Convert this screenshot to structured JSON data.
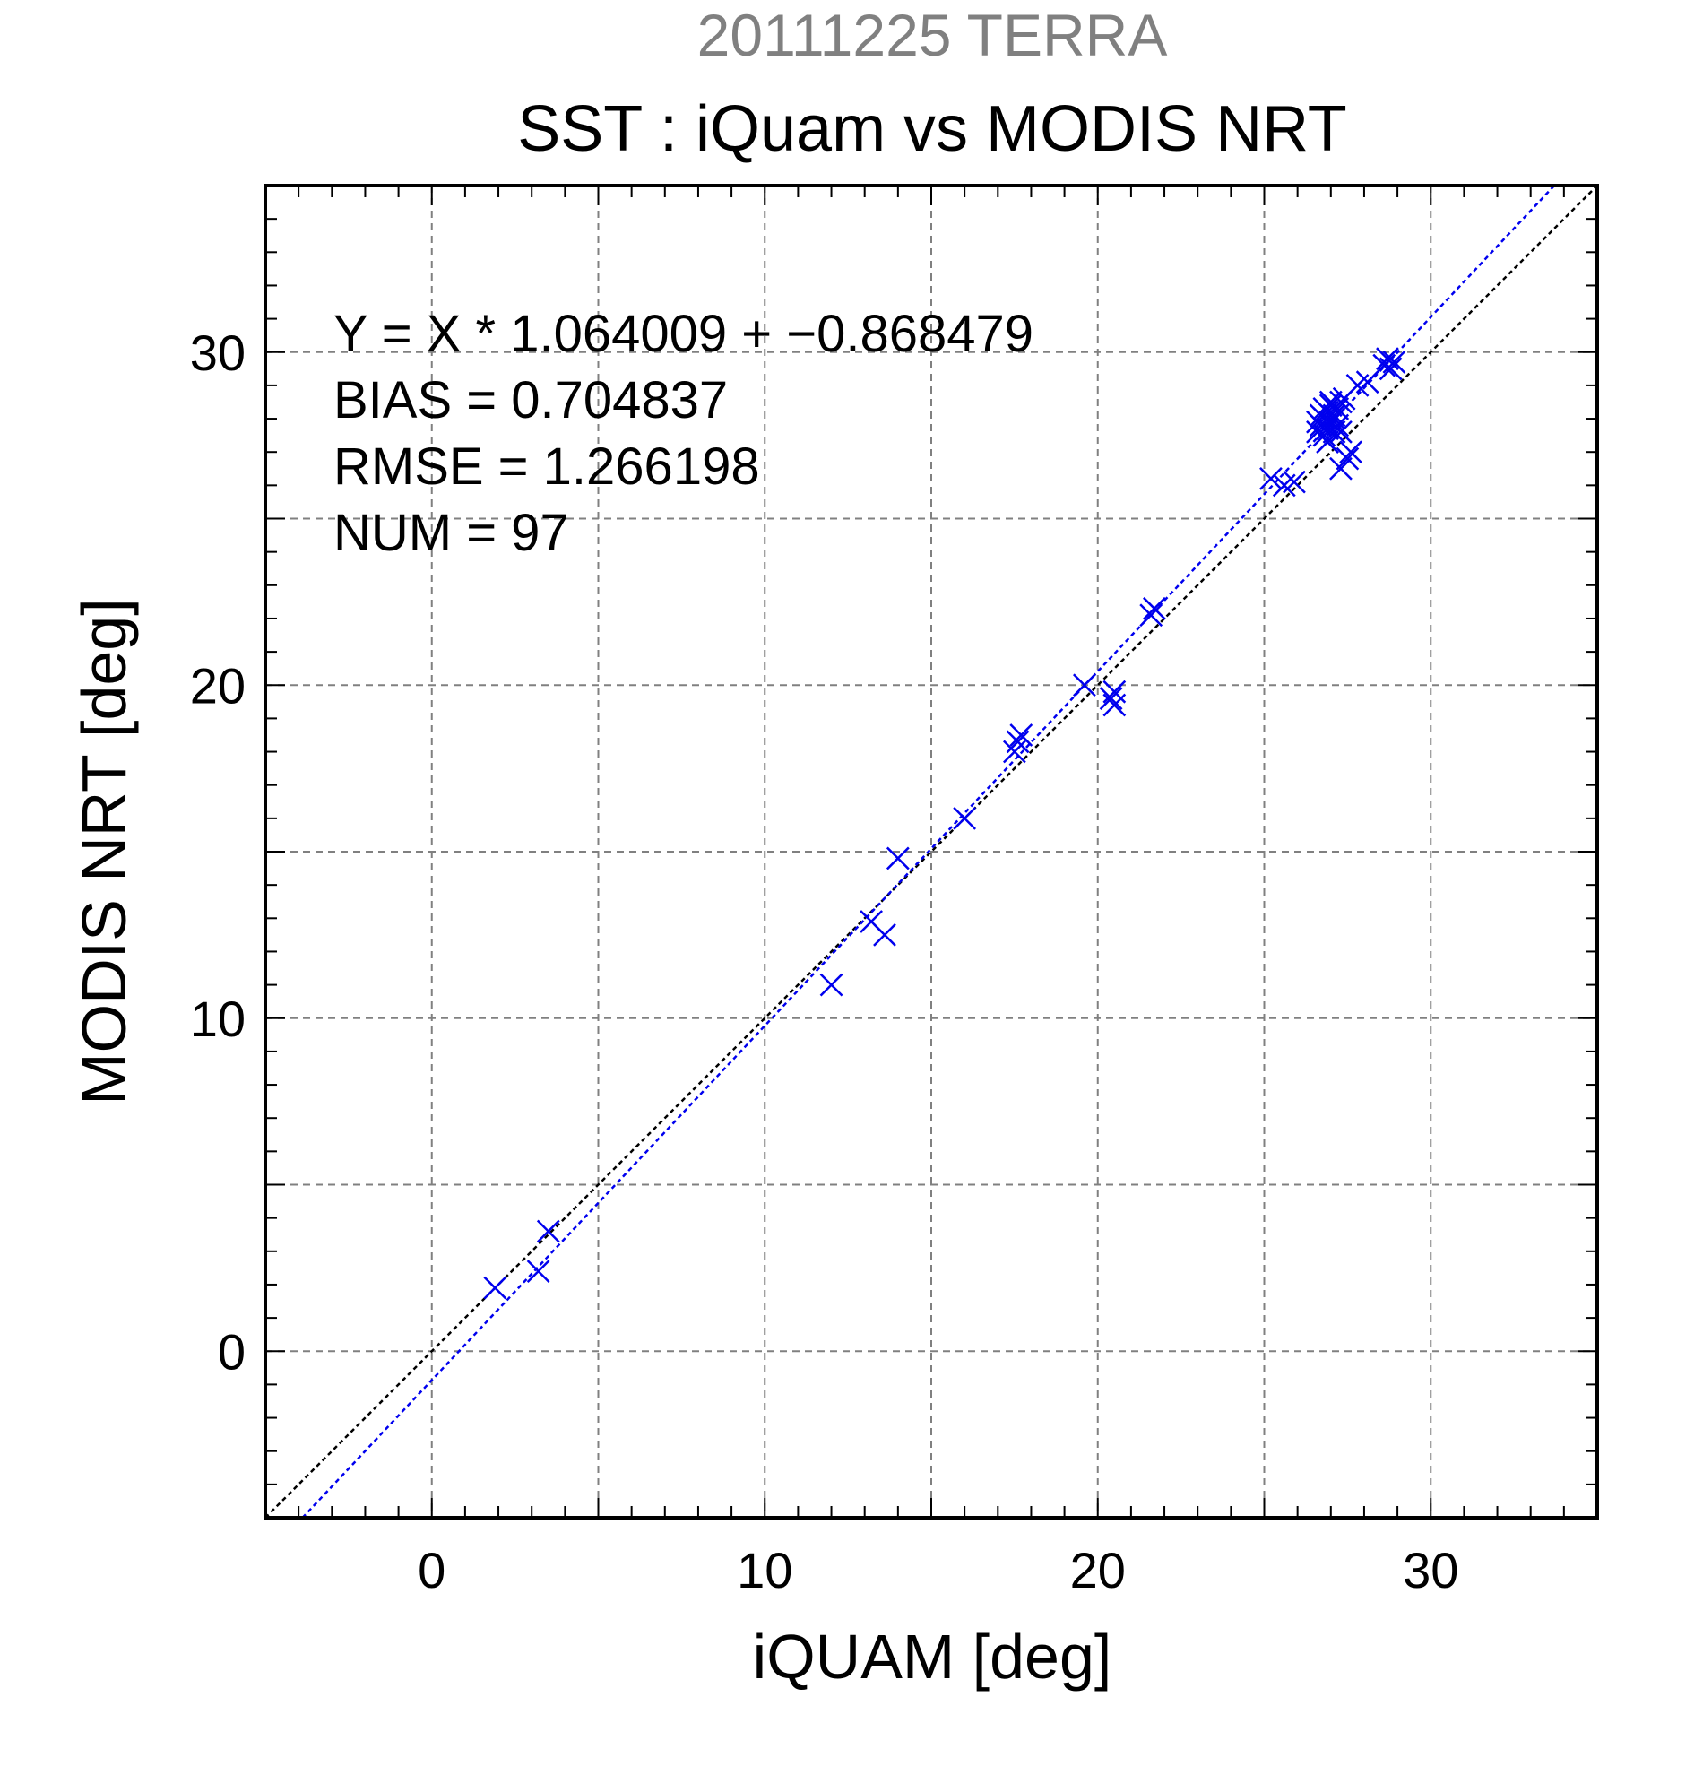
{
  "chart_data": {
    "type": "scatter",
    "title_top": "20111225 TERRA",
    "title": "SST : iQuam vs MODIS NRT",
    "xlabel": "iQUAM [deg]",
    "ylabel": "MODIS NRT [deg]",
    "xlim": [
      -5,
      35
    ],
    "ylim": [
      -5,
      35
    ],
    "x_ticks": [
      0,
      10,
      20,
      30
    ],
    "y_ticks": [
      0,
      10,
      20,
      30
    ],
    "grid": true,
    "colors": {
      "points": "#0000ee",
      "fit_line": "#0000ee",
      "identity_line": "#000000",
      "title_top": "#808080",
      "grid": "#808080"
    },
    "stats": [
      "Y = X * 1.064009 + −0.868479",
      "BIAS = 0.704837",
      "RMSE = 1.266198",
      "NUM = 97"
    ],
    "fit": {
      "slope": 1.064009,
      "intercept": -0.868479
    },
    "points": [
      [
        1.9,
        1.9
      ],
      [
        3.2,
        2.4
      ],
      [
        3.5,
        3.6
      ],
      [
        12.0,
        11.0
      ],
      [
        13.2,
        12.9
      ],
      [
        13.6,
        12.5
      ],
      [
        14.0,
        14.8
      ],
      [
        16.0,
        16.0
      ],
      [
        17.5,
        18.0
      ],
      [
        17.6,
        18.3
      ],
      [
        17.7,
        18.5
      ],
      [
        19.6,
        20.0
      ],
      [
        20.4,
        19.6
      ],
      [
        20.5,
        19.8
      ],
      [
        20.5,
        19.4
      ],
      [
        21.7,
        22.3
      ],
      [
        21.6,
        22.1
      ],
      [
        25.2,
        26.2
      ],
      [
        25.6,
        26.0
      ],
      [
        25.9,
        26.1
      ],
      [
        26.6,
        27.6
      ],
      [
        26.7,
        27.8
      ],
      [
        26.8,
        28.0
      ],
      [
        26.8,
        27.5
      ],
      [
        26.9,
        28.2
      ],
      [
        26.9,
        27.7
      ],
      [
        27.0,
        28.4
      ],
      [
        27.0,
        27.9
      ],
      [
        27.1,
        28.1
      ],
      [
        27.1,
        27.6
      ],
      [
        27.2,
        28.3
      ],
      [
        27.2,
        27.8
      ],
      [
        26.7,
        28.1
      ],
      [
        26.8,
        28.3
      ],
      [
        27.0,
        28.5
      ],
      [
        26.9,
        27.3
      ],
      [
        27.3,
        28.5
      ],
      [
        27.4,
        28.6
      ],
      [
        26.6,
        27.9
      ],
      [
        27.1,
        28.0
      ],
      [
        27.3,
        26.5
      ],
      [
        27.5,
        26.8
      ],
      [
        27.6,
        27.0
      ],
      [
        27.3,
        27.6
      ],
      [
        27.8,
        29.0
      ],
      [
        28.1,
        29.1
      ],
      [
        28.6,
        29.6
      ],
      [
        28.7,
        29.8
      ],
      [
        28.8,
        29.5
      ],
      [
        28.9,
        29.7
      ]
    ]
  }
}
